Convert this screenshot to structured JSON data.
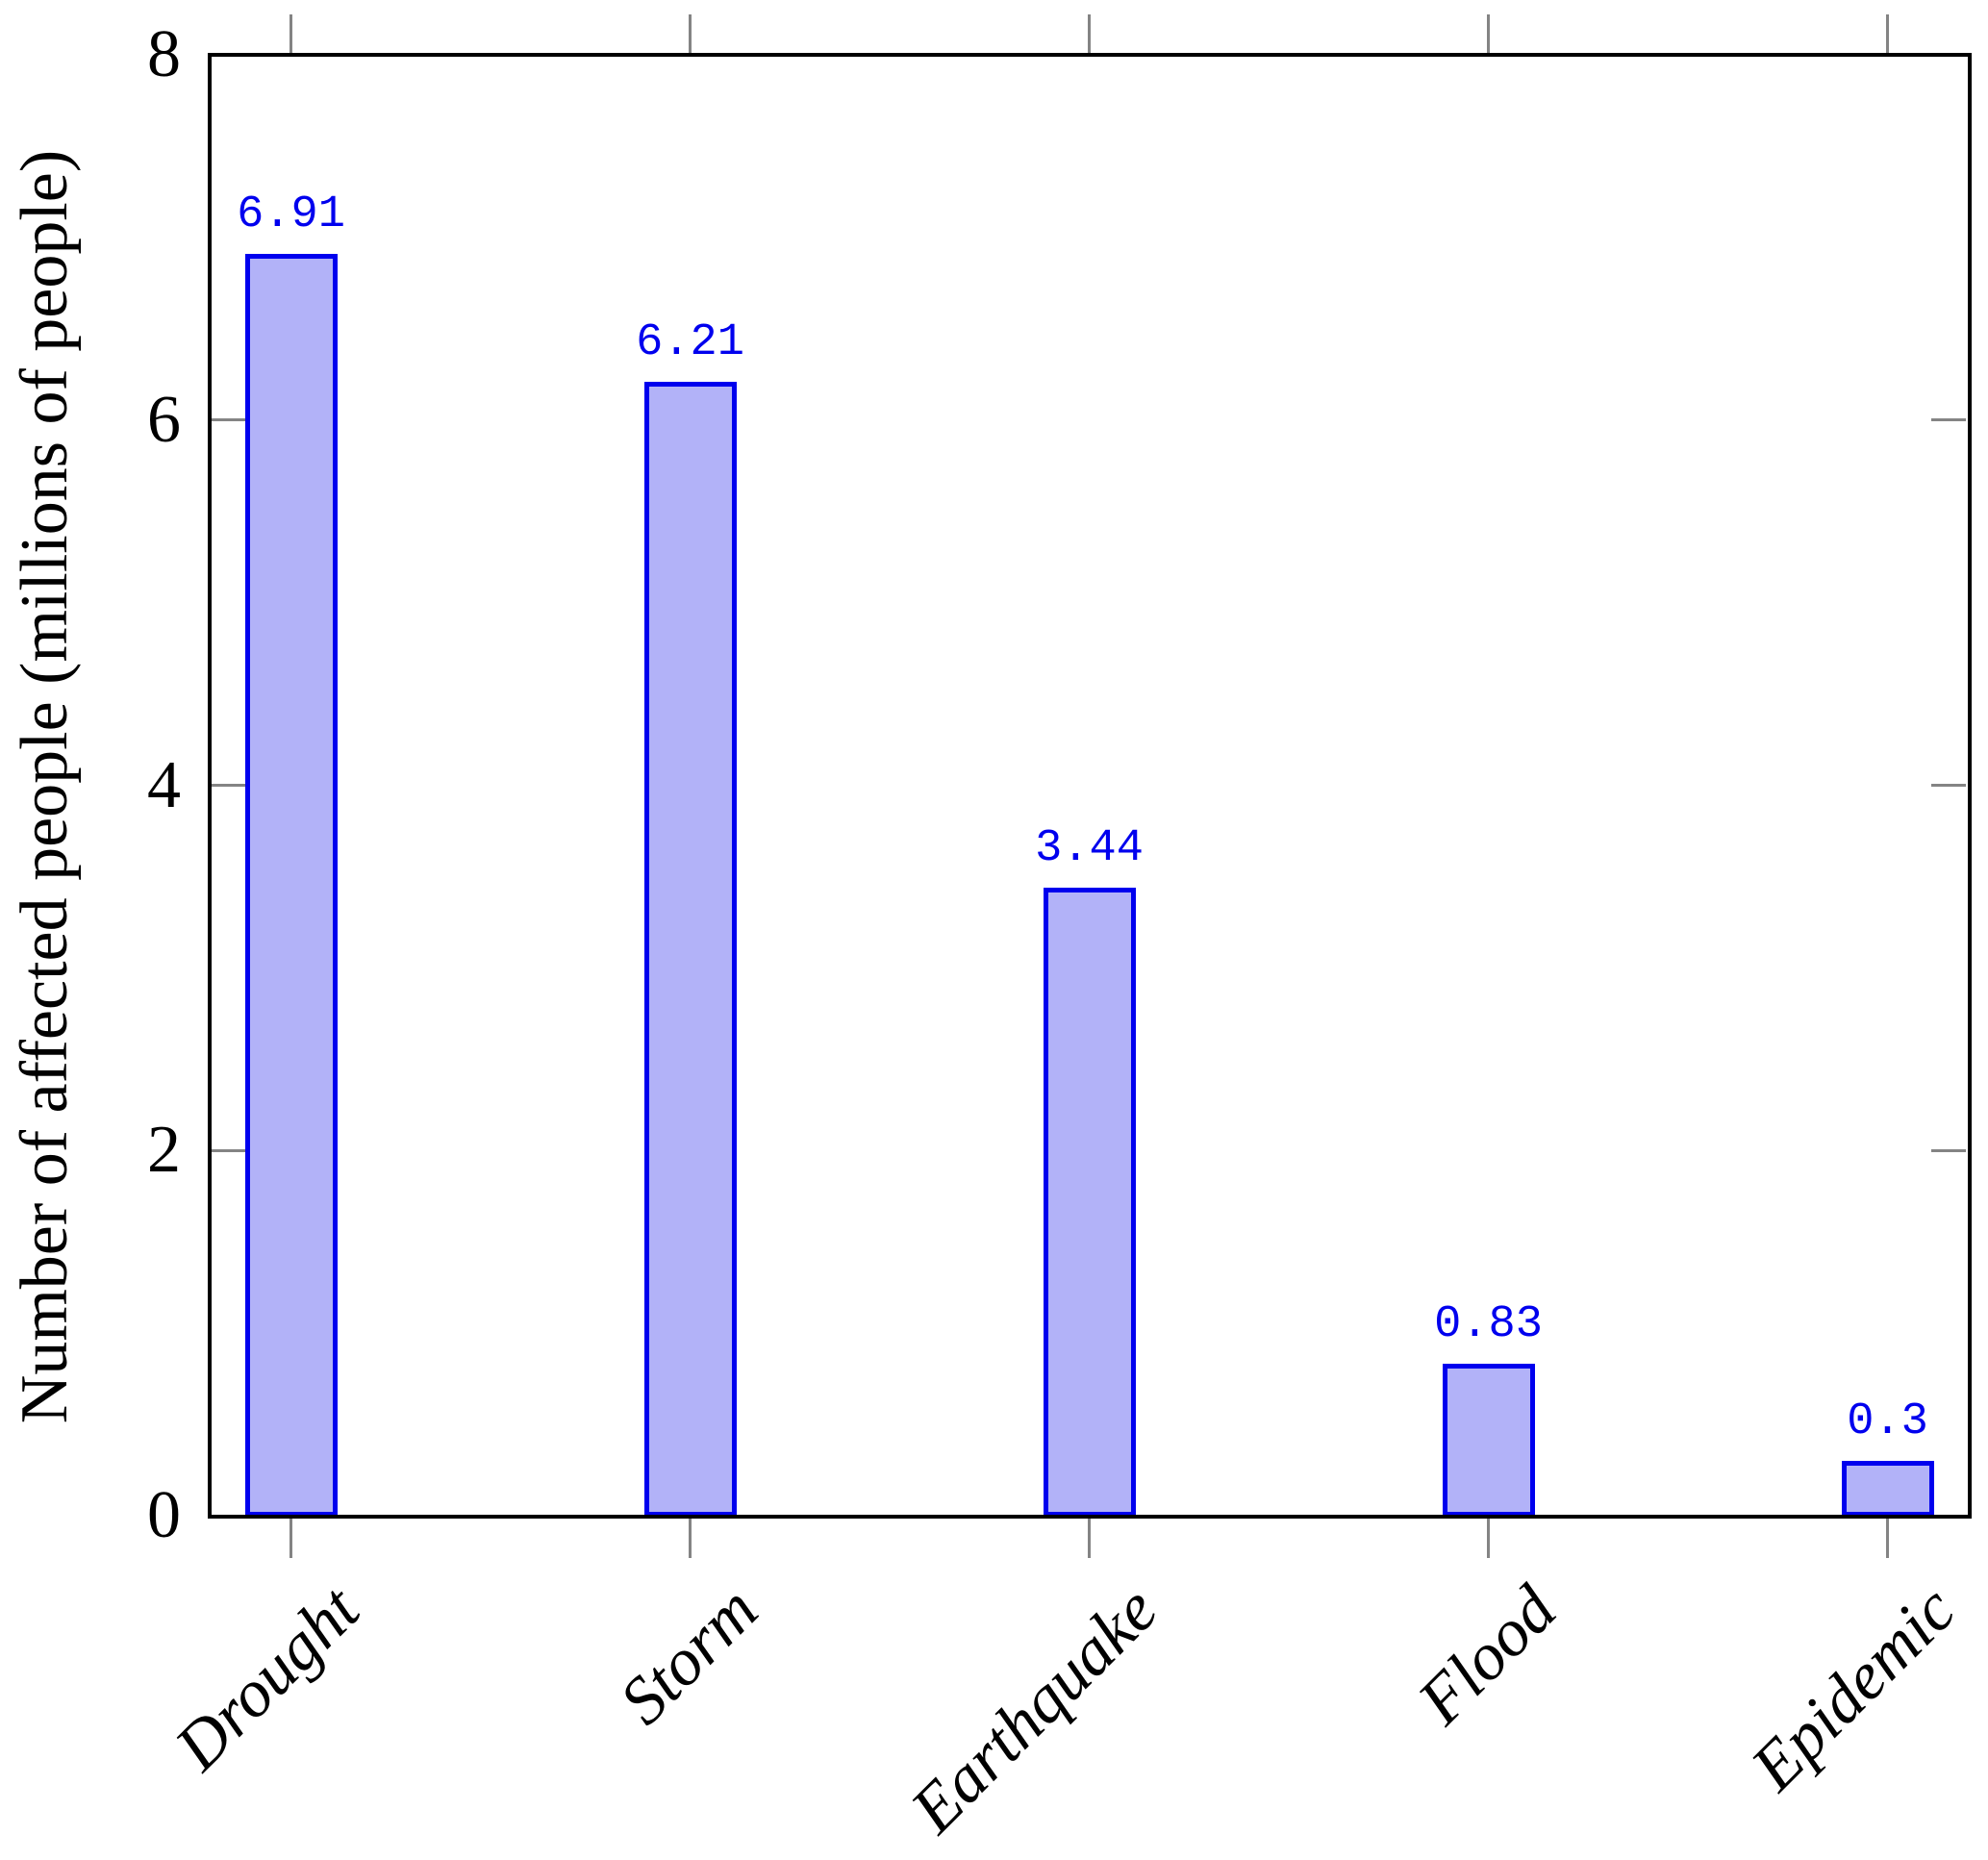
{
  "chart_data": {
    "type": "bar",
    "categories": [
      "Drought",
      "Storm",
      "Earthquake",
      "Flood",
      "Epidemic"
    ],
    "values": [
      6.91,
      6.21,
      3.44,
      0.83,
      0.3
    ],
    "value_labels": [
      "6.91",
      "6.21",
      "3.44",
      "0.83",
      "0.3"
    ],
    "title": "",
    "xlabel": "",
    "ylabel": "Number of affected people (millions of people)",
    "ylim": [
      0,
      8
    ],
    "yticks": [
      0,
      2,
      4,
      6,
      8
    ],
    "ytick_labels": [
      "0",
      "2",
      "4",
      "6",
      "8"
    ],
    "grid": "off",
    "legend": "none",
    "bar_fill_color": "#b2b2f8",
    "bar_border_color": "#0000ee",
    "value_label_color": "#0000ee",
    "axis_color": "#000000",
    "tick_color": "#848484"
  }
}
